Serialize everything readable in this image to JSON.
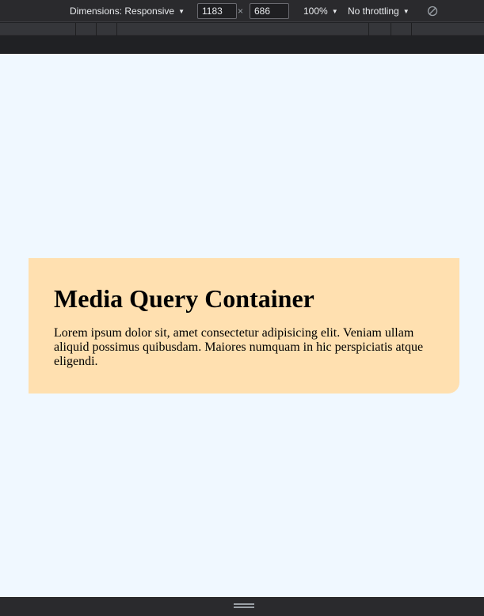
{
  "toolbar": {
    "dimensions_label": "Dimensions: Responsive",
    "width_value": "1183",
    "times_glyph": "×",
    "height_value": "686",
    "zoom_label": "100%",
    "throttling_label": "No throttling",
    "caret_glyph": "▼"
  },
  "page": {
    "card_title": "Media Query Container",
    "card_body": "Lorem ipsum dolor sit, amet consectetur adipisicing elit. Veniam ullam aliquid possimus quibusdam. Maiores numquam in hic perspiciatis atque eligendi."
  },
  "colors": {
    "viewport_background": "#f0f8ff",
    "card_background": "#ffe0b0",
    "devtools_background": "#2a2a2d"
  },
  "icons": [
    "chevron-down-icon",
    "rotate-icon",
    "resize-handle-icon"
  ]
}
